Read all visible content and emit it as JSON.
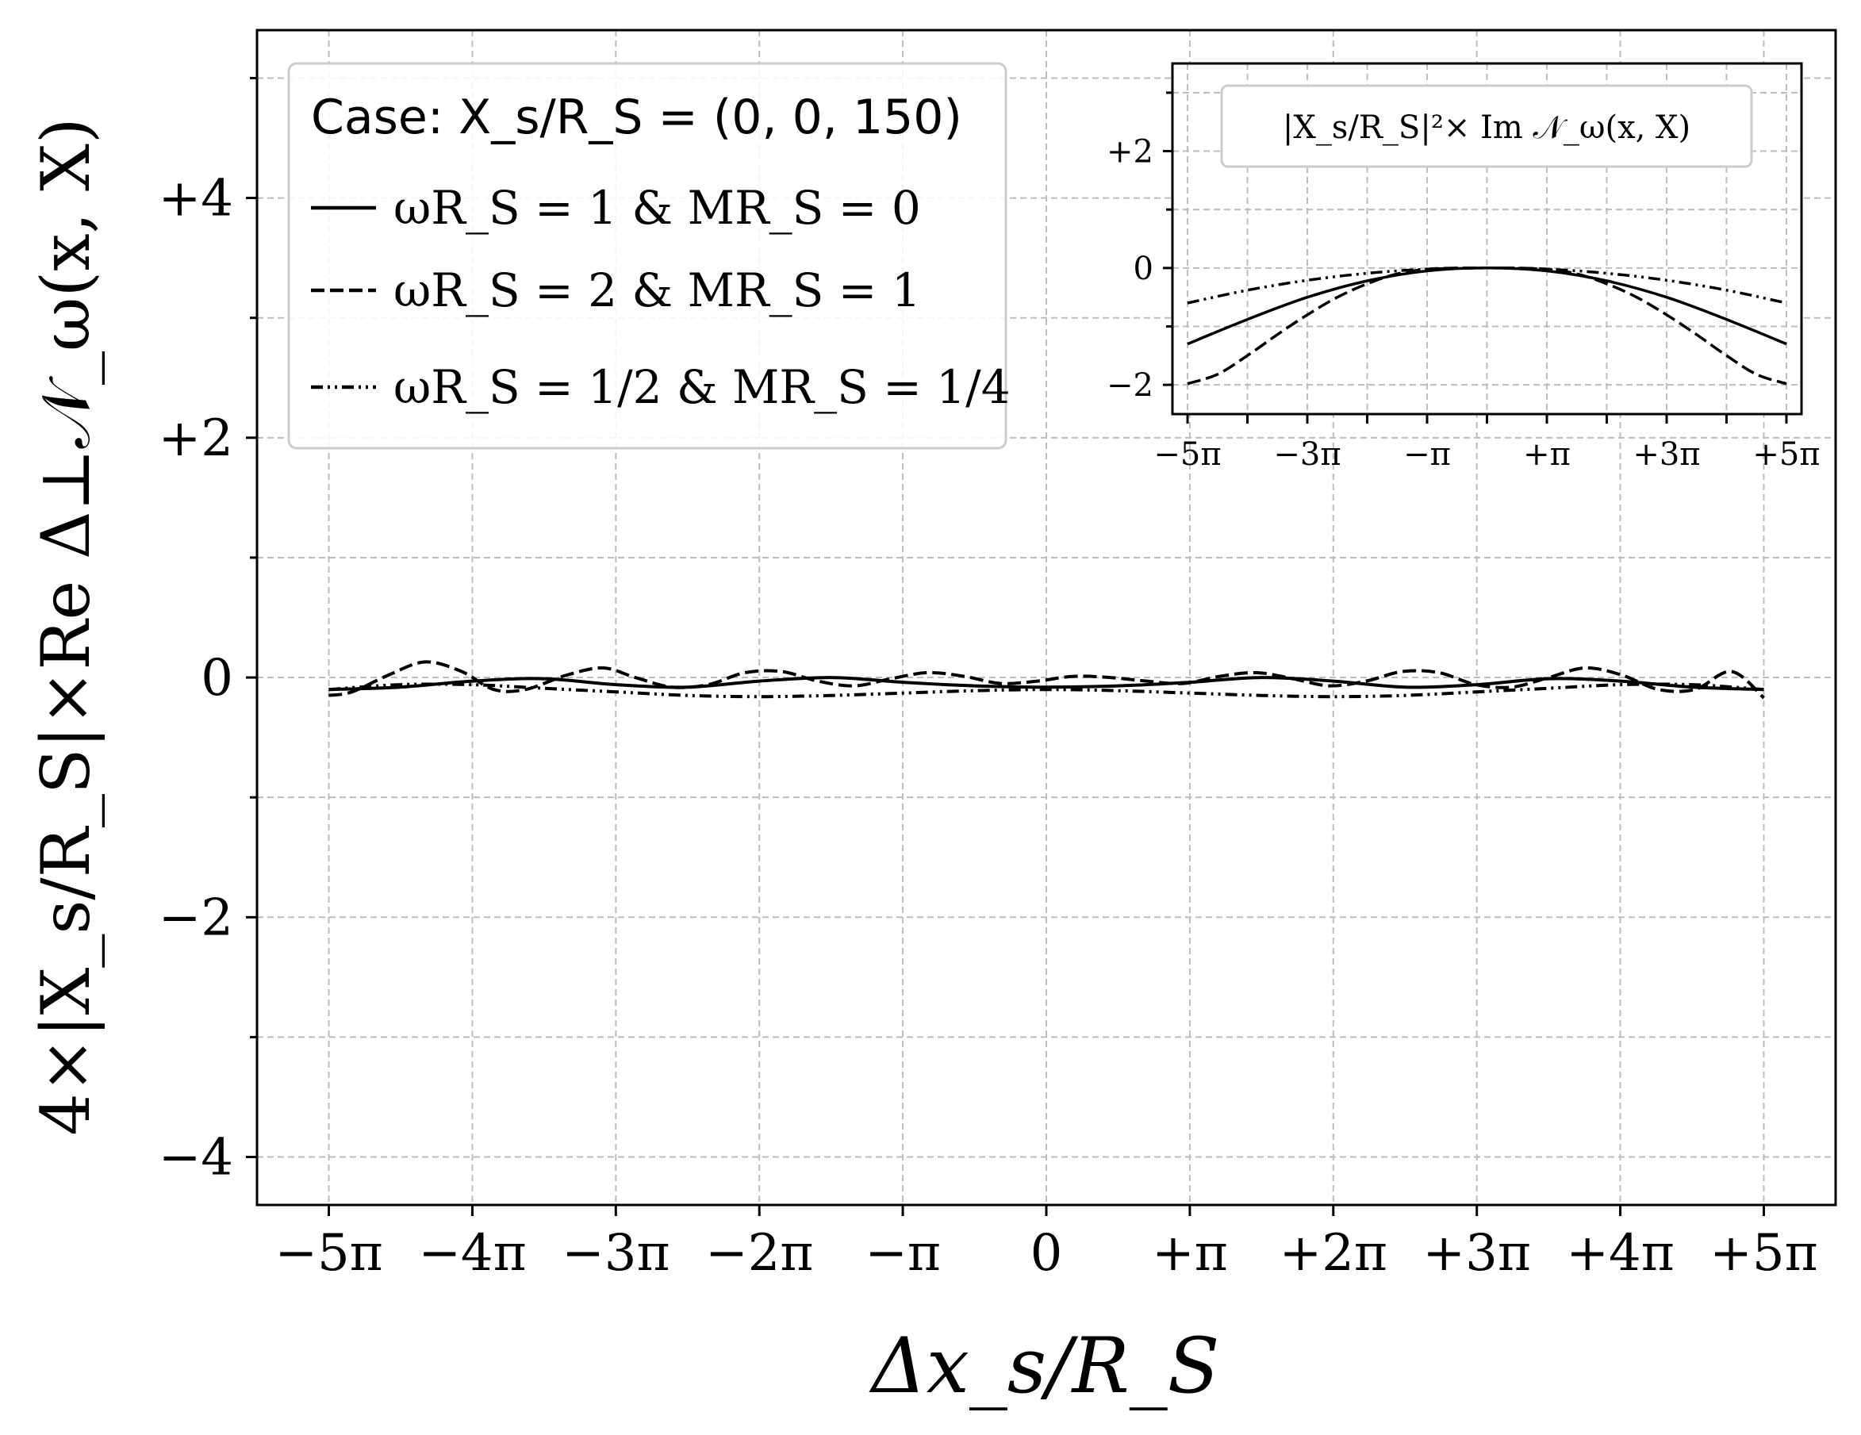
{
  "chart_data": [
    {
      "type": "line",
      "xlabel": "Δx_s/R_S",
      "ylabel": "4×|X_s/R_S|×Re Δ⊥𝒩_ω(x, X)",
      "xlim": [
        -17.28,
        17.28
      ],
      "ylim": [
        -4.4,
        5.4
      ],
      "xticks": [
        -15.708,
        -12.566,
        -9.425,
        -6.283,
        -3.142,
        0,
        3.142,
        6.283,
        9.425,
        12.566,
        15.708
      ],
      "xtick_labels": [
        "−5π",
        "−4π",
        "−3π",
        "−2π",
        "−π",
        "0",
        "+π",
        "+2π",
        "+3π",
        "+4π",
        "+5π"
      ],
      "yticks": [
        -4,
        -2,
        0,
        2,
        4
      ],
      "ytick_labels": [
        "−4",
        "−2",
        "0",
        "+2",
        "+4"
      ],
      "yticks_minor": [
        -3,
        -1,
        1,
        3,
        5
      ],
      "grid": true,
      "legend": {
        "placement": "upper-left",
        "title": "Case: X_s/R_S = (0, 0, 150)",
        "entries": [
          "ωR_S = 1 & MR_S = 0",
          "ωR_S = 2 & MR_S = 1",
          "ωR_S = 1/2 & MR_S = 1/4"
        ]
      },
      "series": [
        {
          "name": "ωR_S = 1 & MR_S = 0",
          "style": "solid",
          "x": [
            -15.71,
            -14.14,
            -12.57,
            -11.0,
            -9.42,
            -7.85,
            -6.28,
            -4.71,
            -3.14,
            -1.57,
            0,
            1.57,
            3.14,
            4.71,
            6.28,
            7.85,
            9.42,
            11.0,
            12.57,
            14.14,
            15.71
          ],
          "y": [
            -0.1,
            -0.08,
            -0.03,
            -0.01,
            -0.06,
            -0.08,
            -0.03,
            0.0,
            -0.04,
            -0.07,
            -0.08,
            -0.07,
            -0.04,
            0.0,
            -0.03,
            -0.08,
            -0.06,
            -0.01,
            -0.03,
            -0.08,
            -0.1
          ]
        },
        {
          "name": "ωR_S = 2 & MR_S = 1",
          "style": "dashed",
          "x": [
            -15.71,
            -15.2,
            -14.4,
            -13.6,
            -12.8,
            -12.1,
            -11.4,
            -10.5,
            -9.7,
            -9.0,
            -8.2,
            -7.4,
            -6.6,
            -5.8,
            -5.0,
            -4.2,
            -3.4,
            -2.6,
            -1.8,
            -1.0,
            -0.2,
            0.6,
            1.4,
            2.2,
            3.0,
            3.8,
            4.6,
            5.4,
            6.2,
            7.0,
            7.8,
            8.6,
            9.4,
            10.2,
            11.0,
            11.8,
            12.6,
            13.4,
            14.2,
            15.0,
            15.71
          ],
          "y": [
            -0.15,
            -0.12,
            0.02,
            0.13,
            0.05,
            -0.1,
            -0.1,
            0.02,
            0.08,
            0.0,
            -0.08,
            -0.06,
            0.04,
            0.05,
            -0.03,
            -0.07,
            -0.01,
            0.04,
            0.01,
            -0.05,
            -0.03,
            0.01,
            0.0,
            -0.03,
            -0.05,
            0.01,
            0.04,
            -0.01,
            -0.07,
            -0.03,
            0.05,
            0.04,
            -0.06,
            -0.08,
            0.0,
            0.08,
            0.02,
            -0.1,
            -0.1,
            0.05,
            -0.17
          ]
        },
        {
          "name": "ωR_S = 1/2 & MR_S = 1/4",
          "style": "dash-dot-dot",
          "x": [
            -15.71,
            -14.14,
            -12.57,
            -11.0,
            -9.42,
            -7.85,
            -6.28,
            -4.71,
            -3.14,
            -1.57,
            0,
            1.57,
            3.14,
            4.71,
            6.28,
            7.85,
            9.42,
            11.0,
            12.57,
            14.14,
            15.71
          ],
          "y": [
            -0.1,
            -0.06,
            -0.06,
            -0.09,
            -0.12,
            -0.15,
            -0.16,
            -0.15,
            -0.13,
            -0.11,
            -0.1,
            -0.11,
            -0.13,
            -0.15,
            -0.16,
            -0.15,
            -0.12,
            -0.09,
            -0.06,
            -0.06,
            -0.1
          ]
        }
      ]
    },
    {
      "type": "line",
      "title": "|X_s/R_S|²× Im 𝒩_ω(x, X)",
      "xlim": [
        -16.5,
        16.5
      ],
      "ylim": [
        -2.5,
        3.5
      ],
      "xticks": [
        -15.708,
        -9.425,
        -3.142,
        3.142,
        9.425,
        15.708
      ],
      "xtick_labels": [
        "−5π",
        "−3π",
        "−π",
        "+π",
        "+3π",
        "+5π"
      ],
      "xticks_minor": [
        -12.566,
        -6.283,
        0,
        6.283,
        12.566
      ],
      "yticks": [
        -2,
        0,
        2
      ],
      "ytick_labels": [
        "−2",
        "0",
        "+2"
      ],
      "yticks_minor": [
        -1,
        1,
        3
      ],
      "grid": true,
      "series": [
        {
          "style": "solid",
          "x": [
            -15.71,
            -12.57,
            -9.42,
            -6.28,
            -3.14,
            0,
            3.14,
            6.28,
            9.42,
            12.57,
            15.71
          ],
          "y": [
            -1.3,
            -0.88,
            -0.5,
            -0.22,
            -0.05,
            0.0,
            -0.05,
            -0.22,
            -0.5,
            -0.88,
            -1.3
          ]
        },
        {
          "style": "dashed",
          "x": [
            -15.71,
            -14.14,
            -12.57,
            -11.0,
            -9.42,
            -7.85,
            -6.28,
            -4.71,
            -3.14,
            -1.57,
            0,
            1.57,
            3.14,
            4.71,
            6.28,
            7.85,
            9.42,
            11.0,
            12.57,
            14.14,
            15.71
          ],
          "y": [
            -1.98,
            -1.82,
            -1.5,
            -1.14,
            -0.8,
            -0.5,
            -0.27,
            -0.1,
            -0.02,
            0.0,
            0.0,
            0.0,
            -0.02,
            -0.1,
            -0.27,
            -0.5,
            -0.8,
            -1.14,
            -1.5,
            -1.82,
            -1.98
          ]
        },
        {
          "style": "dash-dot-dot",
          "x": [
            -15.71,
            -12.57,
            -9.42,
            -6.28,
            -3.14,
            0,
            3.14,
            6.28,
            9.42,
            12.57,
            15.71
          ],
          "y": [
            -0.6,
            -0.38,
            -0.21,
            -0.09,
            -0.02,
            0.0,
            -0.02,
            -0.09,
            -0.21,
            -0.38,
            -0.6
          ]
        }
      ]
    }
  ]
}
